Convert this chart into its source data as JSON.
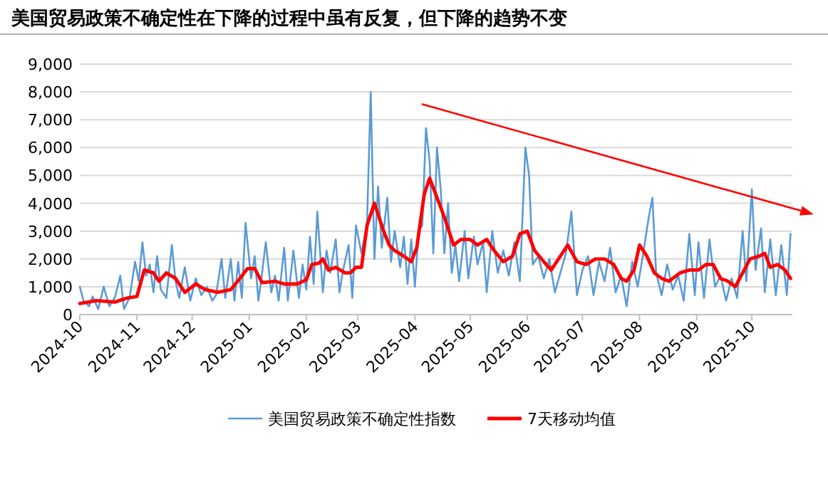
{
  "chart_data": {
    "type": "line",
    "title": "美国贸易政策不确定性在下降的过程中虽有反复，但下降的趋势不变",
    "legend": "bottom",
    "grid": "y",
    "marker": "none",
    "line_style": "solid",
    "xlim": [
      "2024-10-01",
      "2025-10-23"
    ],
    "xticks": [
      {
        "value": "2024-10-01",
        "label": "2024-10"
      },
      {
        "value": "2024-11-01",
        "label": "2024-11"
      },
      {
        "value": "2024-12-01",
        "label": "2024-12"
      },
      {
        "value": "2025-01-01",
        "label": "2025-01"
      },
      {
        "value": "2025-02-01",
        "label": "2025-02"
      },
      {
        "value": "2025-03-01",
        "label": "2025-03"
      },
      {
        "value": "2025-04-01",
        "label": "2025-04"
      },
      {
        "value": "2025-05-01",
        "label": "2025-05"
      },
      {
        "value": "2025-06-01",
        "label": "2025-06"
      },
      {
        "value": "2025-07-01",
        "label": "2025-07"
      },
      {
        "value": "2025-08-01",
        "label": "2025-08"
      },
      {
        "value": "2025-09-01",
        "label": "2025-09"
      },
      {
        "value": "2025-10-01",
        "label": "2025-10"
      }
    ],
    "ylim": [
      0,
      9000
    ],
    "yticks": [
      0,
      {
        "value": 1000,
        "label": "1,000"
      },
      {
        "value": 2000,
        "label": "2,000"
      },
      {
        "value": 3000,
        "label": "3,000"
      },
      {
        "value": 4000,
        "label": "4,000"
      },
      {
        "value": 5000,
        "label": "5,000"
      },
      {
        "value": 6000,
        "label": "6,000"
      },
      {
        "value": 7000,
        "label": "7,000"
      },
      {
        "value": 8000,
        "label": "8,000"
      },
      {
        "value": 9000,
        "label": "9,000"
      }
    ],
    "series": [
      {
        "name": "美国贸易政策不确定性指数",
        "color": "#5b9bd5",
        "x": [
          "2024-10-01",
          "2024-10-03",
          "2024-10-06",
          "2024-10-08",
          "2024-10-11",
          "2024-10-14",
          "2024-10-17",
          "2024-10-20",
          "2024-10-23",
          "2024-10-25",
          "2024-10-28",
          "2024-10-31",
          "2024-11-02",
          "2024-11-04",
          "2024-11-06",
          "2024-11-08",
          "2024-11-10",
          "2024-11-12",
          "2024-11-14",
          "2024-11-17",
          "2024-11-20",
          "2024-11-22",
          "2024-11-24",
          "2024-11-27",
          "2024-11-30",
          "2024-12-03",
          "2024-12-06",
          "2024-12-09",
          "2024-12-12",
          "2024-12-14",
          "2024-12-17",
          "2024-12-19",
          "2024-12-22",
          "2024-12-24",
          "2024-12-26",
          "2024-12-28",
          "2024-12-30",
          "2025-01-02",
          "2025-01-04",
          "2025-01-06",
          "2025-01-08",
          "2025-01-10",
          "2025-01-13",
          "2025-01-15",
          "2025-01-17",
          "2025-01-20",
          "2025-01-22",
          "2025-01-25",
          "2025-01-28",
          "2025-01-30",
          "2025-02-01",
          "2025-02-03",
          "2025-02-05",
          "2025-02-07",
          "2025-02-10",
          "2025-02-12",
          "2025-02-14",
          "2025-02-17",
          "2025-02-19",
          "2025-02-21",
          "2025-02-24",
          "2025-02-26",
          "2025-02-28",
          "2025-03-03",
          "2025-03-06",
          "2025-03-08",
          "2025-03-10",
          "2025-03-12",
          "2025-03-14",
          "2025-03-17",
          "2025-03-19",
          "2025-03-21",
          "2025-03-24",
          "2025-03-26",
          "2025-03-28",
          "2025-03-30",
          "2025-04-01",
          "2025-04-03",
          "2025-04-05",
          "2025-04-07",
          "2025-04-09",
          "2025-04-11",
          "2025-04-13",
          "2025-04-15",
          "2025-04-17",
          "2025-04-19",
          "2025-04-21",
          "2025-04-23",
          "2025-04-25",
          "2025-04-28",
          "2025-04-30",
          "2025-05-03",
          "2025-05-05",
          "2025-05-08",
          "2025-05-10",
          "2025-05-13",
          "2025-05-16",
          "2025-05-19",
          "2025-05-22",
          "2025-05-25",
          "2025-05-28",
          "2025-05-31",
          "2025-06-02",
          "2025-06-04",
          "2025-06-07",
          "2025-06-10",
          "2025-06-13",
          "2025-06-16",
          "2025-06-19",
          "2025-06-22",
          "2025-06-25",
          "2025-06-28",
          "2025-07-01",
          "2025-07-04",
          "2025-07-07",
          "2025-07-10",
          "2025-07-13",
          "2025-07-16",
          "2025-07-19",
          "2025-07-22",
          "2025-07-25",
          "2025-07-28",
          "2025-07-31",
          "2025-08-03",
          "2025-08-06",
          "2025-08-08",
          "2025-08-10",
          "2025-08-13",
          "2025-08-16",
          "2025-08-19",
          "2025-08-22",
          "2025-08-25",
          "2025-08-28",
          "2025-08-31",
          "2025-09-02",
          "2025-09-05",
          "2025-09-08",
          "2025-09-11",
          "2025-09-14",
          "2025-09-17",
          "2025-09-20",
          "2025-09-23",
          "2025-09-26",
          "2025-09-28",
          "2025-10-01",
          "2025-10-03",
          "2025-10-06",
          "2025-10-08",
          "2025-10-11",
          "2025-10-14",
          "2025-10-17",
          "2025-10-20",
          "2025-10-22"
        ],
        "values": [
          1000,
          500,
          300,
          650,
          200,
          1000,
          300,
          600,
          1400,
          200,
          600,
          1900,
          1200,
          2600,
          1400,
          1800,
          800,
          2100,
          900,
          600,
          2500,
          1200,
          600,
          1700,
          500,
          1300,
          700,
          1000,
          500,
          700,
          2000,
          600,
          2000,
          500,
          1900,
          600,
          3300,
          1300,
          2100,
          500,
          1500,
          2600,
          800,
          1400,
          500,
          2400,
          500,
          2300,
          600,
          1800,
          900,
          2800,
          1100,
          3700,
          800,
          2300,
          1500,
          2700,
          800,
          1600,
          2500,
          600,
          3200,
          2200,
          3300,
          8000,
          2000,
          4600,
          2400,
          4200,
          1900,
          3000,
          1700,
          2800,
          1100,
          2700,
          1000,
          3000,
          3200,
          6700,
          5500,
          2200,
          6000,
          4500,
          2200,
          4000,
          1500,
          2500,
          1200,
          3000,
          1300,
          2800,
          1800,
          2600,
          800,
          3000,
          1500,
          2300,
          1400,
          2600,
          1200,
          6000,
          5000,
          1800,
          2100,
          1300,
          2000,
          800,
          1500,
          2200,
          3700,
          700,
          1600,
          2100,
          700,
          1900,
          1200,
          2400,
          800,
          1400,
          300,
          1900,
          1000,
          2200,
          3500,
          4200,
          1500,
          700,
          1800,
          900,
          1400,
          500,
          2900,
          700,
          2600,
          600,
          2700,
          1000,
          1400,
          500,
          1300,
          600,
          3000,
          1200,
          4500,
          1600,
          3100,
          800,
          2700,
          700,
          2500,
          700,
          2900
        ]
      },
      {
        "name": "7天移动均值",
        "color": "#ff0000",
        "x": [
          "2024-10-01",
          "2024-10-10",
          "2024-10-20",
          "2024-10-27",
          "2024-11-01",
          "2024-11-05",
          "2024-11-10",
          "2024-11-13",
          "2024-11-17",
          "2024-11-22",
          "2024-11-27",
          "2024-12-03",
          "2024-12-08",
          "2024-12-15",
          "2024-12-22",
          "2024-12-27",
          "2024-12-31",
          "2025-01-04",
          "2025-01-08",
          "2025-01-15",
          "2025-01-20",
          "2025-01-27",
          "2025-02-01",
          "2025-02-04",
          "2025-02-08",
          "2025-02-10",
          "2025-02-13",
          "2025-02-17",
          "2025-02-22",
          "2025-02-25",
          "2025-02-28",
          "2025-03-03",
          "2025-03-06",
          "2025-03-10",
          "2025-03-15",
          "2025-03-18",
          "2025-03-21",
          "2025-03-26",
          "2025-03-30",
          "2025-04-02",
          "2025-04-06",
          "2025-04-09",
          "2025-04-13",
          "2025-04-17",
          "2025-04-22",
          "2025-04-26",
          "2025-05-01",
          "2025-05-05",
          "2025-05-10",
          "2025-05-14",
          "2025-05-19",
          "2025-05-24",
          "2025-05-28",
          "2025-06-01",
          "2025-06-05",
          "2025-06-10",
          "2025-06-14",
          "2025-06-18",
          "2025-06-23",
          "2025-06-28",
          "2025-07-03",
          "2025-07-08",
          "2025-07-13",
          "2025-07-18",
          "2025-07-22",
          "2025-07-25",
          "2025-07-29",
          "2025-08-01",
          "2025-08-05",
          "2025-08-09",
          "2025-08-13",
          "2025-08-17",
          "2025-08-23",
          "2025-08-28",
          "2025-09-02",
          "2025-09-06",
          "2025-09-10",
          "2025-09-14",
          "2025-09-18",
          "2025-09-22",
          "2025-09-26",
          "2025-09-30",
          "2025-10-05",
          "2025-10-08",
          "2025-10-11",
          "2025-10-15",
          "2025-10-19",
          "2025-10-22"
        ],
        "values": [
          400,
          500,
          450,
          600,
          650,
          1600,
          1500,
          1200,
          1500,
          1300,
          800,
          1100,
          900,
          800,
          900,
          1300,
          1650,
          1650,
          1150,
          1200,
          1100,
          1100,
          1250,
          1800,
          1850,
          2000,
          1600,
          1700,
          1500,
          1500,
          1700,
          1700,
          3200,
          4000,
          3000,
          2500,
          2300,
          2100,
          1900,
          2400,
          4300,
          4900,
          4200,
          3500,
          2500,
          2700,
          2700,
          2500,
          2700,
          2300,
          1900,
          2100,
          2900,
          3000,
          2300,
          1900,
          1600,
          2000,
          2500,
          1900,
          1800,
          2000,
          2000,
          1800,
          1300,
          1200,
          1600,
          2500,
          2100,
          1500,
          1300,
          1200,
          1500,
          1600,
          1600,
          1800,
          1800,
          1300,
          1200,
          1000,
          1500,
          2000,
          2100,
          2200,
          1700,
          1800,
          1600,
          1300
        ]
      }
    ]
  }
}
